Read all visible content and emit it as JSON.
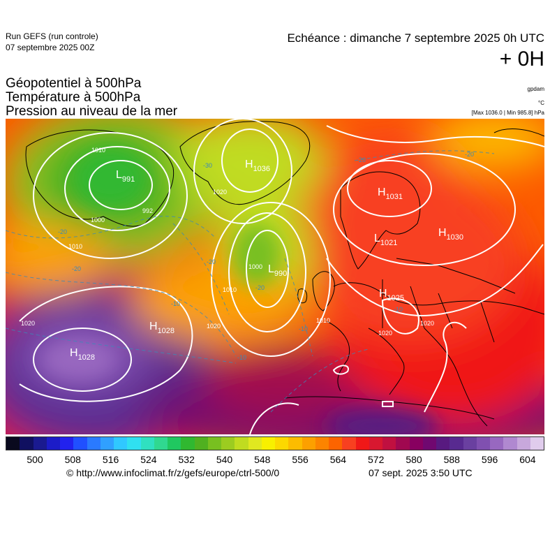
{
  "header": {
    "run_name": "Run GEFS (run controle)",
    "run_date": "07 septembre 2025 00Z",
    "echeance": "Echéance : dimanche 7 septembre 2025 0h UTC",
    "lead": "+ 0H"
  },
  "parameters": [
    "Géopotentiel à 500hPa",
    "Température à 500hPa",
    "Pression au niveau de la mer"
  ],
  "units": {
    "geopotential": "gpdam",
    "temperature": "°C",
    "pressure": "[Max 1036.0 | Min 985.8] hPa"
  },
  "map": {
    "pressure_centers": [
      {
        "type": "H",
        "value": "1036"
      },
      {
        "type": "H",
        "value": "1031"
      },
      {
        "type": "H",
        "value": "1030"
      },
      {
        "type": "H",
        "value": "1025"
      },
      {
        "type": "H",
        "value": "1028"
      },
      {
        "type": "H",
        "value": "1028"
      },
      {
        "type": "L",
        "value": "991"
      },
      {
        "type": "L",
        "value": "1021"
      },
      {
        "type": "L",
        "value": "990"
      }
    ],
    "isobar_labels": [
      "1010",
      "992",
      "1000",
      "1010",
      "1020",
      "1000",
      "1010",
      "1020",
      "1010",
      "1020",
      "1020",
      "1020"
    ],
    "temp_labels": [
      "-20",
      "-30",
      "-20",
      "-20",
      "-20",
      "-20",
      "-10",
      "-10",
      "-20",
      "-10",
      "-10"
    ]
  },
  "scale": {
    "ticks": [
      "500",
      "508",
      "516",
      "524",
      "532",
      "540",
      "548",
      "556",
      "564",
      "572",
      "580",
      "588",
      "596",
      "604"
    ],
    "colors": [
      "#0a0a1e",
      "#101060",
      "#1a1a90",
      "#1c1cc8",
      "#2222ee",
      "#2050ff",
      "#2a7aff",
      "#30a0ff",
      "#30c8ff",
      "#30e0f0",
      "#30e0c0",
      "#30d890",
      "#20c860",
      "#30b830",
      "#50b020",
      "#78c020",
      "#9ccc20",
      "#c0dc20",
      "#e0e820",
      "#f8f000",
      "#fcd800",
      "#fcbc00",
      "#fca000",
      "#fc8400",
      "#fc6400",
      "#f84020",
      "#f01818",
      "#d81830",
      "#c01040",
      "#a00850",
      "#880060",
      "#700870",
      "#581a80",
      "#582a90",
      "#6a40a0",
      "#8050b0",
      "#9868c0",
      "#b088d0",
      "#c8a8dc",
      "#e0ccec"
    ]
  },
  "footer": {
    "url": "© http://www.infoclimat.fr/z/gefs/europe/ctrl-500/0",
    "date": "07 sept. 2025  3:50 UTC"
  }
}
